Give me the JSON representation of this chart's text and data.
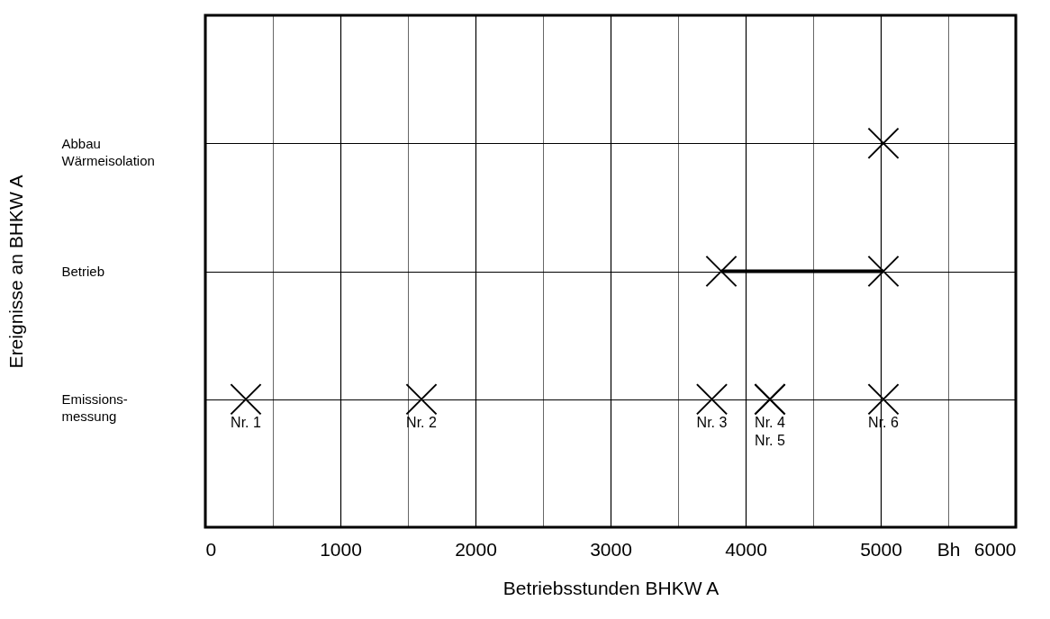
{
  "chart_data": {
    "type": "scatter",
    "orientation": "horizontal",
    "xlabel": "Betriebsstunden BHKW A",
    "ylabel": "Ereignisse an BHKW A",
    "categories": [
      "Abbau\nWärmeisolation",
      "Betrieb",
      "Emissions-\nmessung"
    ],
    "xlim": [
      0,
      6000
    ],
    "xticks": [
      0,
      {
        "value": 500,
        "label": null
      },
      1000,
      {
        "value": 1500,
        "label": null
      },
      2000,
      {
        "value": 2500,
        "label": null
      },
      3000,
      {
        "value": 3500,
        "label": null
      },
      4000,
      {
        "value": 4500,
        "label": null
      },
      5000,
      {
        "value": 5500,
        "label": "Bh"
      },
      6000
    ],
    "grid": true,
    "marker": "cross",
    "series": [
      {
        "type": "bar",
        "color": "#000000",
        "values": [
          null,
          1200,
          null
        ],
        "base": [
          null,
          3820,
          null
        ]
      },
      {
        "color": "#000000",
        "values": [
          5020,
          3820,
          300
        ]
      },
      {
        "color": "#000000",
        "values": [
          null,
          5020,
          1600
        ]
      },
      {
        "color": "#000000",
        "values": [
          null,
          null,
          3750
        ]
      },
      {
        "color": "#000000",
        "values": [
          null,
          null,
          4180
        ]
      },
      {
        "color": "#000000",
        "values": [
          null,
          null,
          4180
        ]
      },
      {
        "color": "#000000",
        "values": [
          null,
          null,
          5020
        ]
      }
    ],
    "annotations": [
      {
        "text": "Nr. 1",
        "x": 300,
        "y": "Emissions-\nmessung"
      },
      {
        "text": "Nr. 2",
        "x": 1600,
        "y": "Emissions-\nmessung"
      },
      {
        "text": "Nr. 3",
        "x": 3750,
        "y": "Emissions-\nmessung"
      },
      {
        "text": "Nr. 4\nNr. 5",
        "x": 4180,
        "y": "Emissions-\nmessung"
      },
      {
        "text": "Nr. 6",
        "x": 5020,
        "y": "Emissions-\nmessung"
      }
    ]
  }
}
